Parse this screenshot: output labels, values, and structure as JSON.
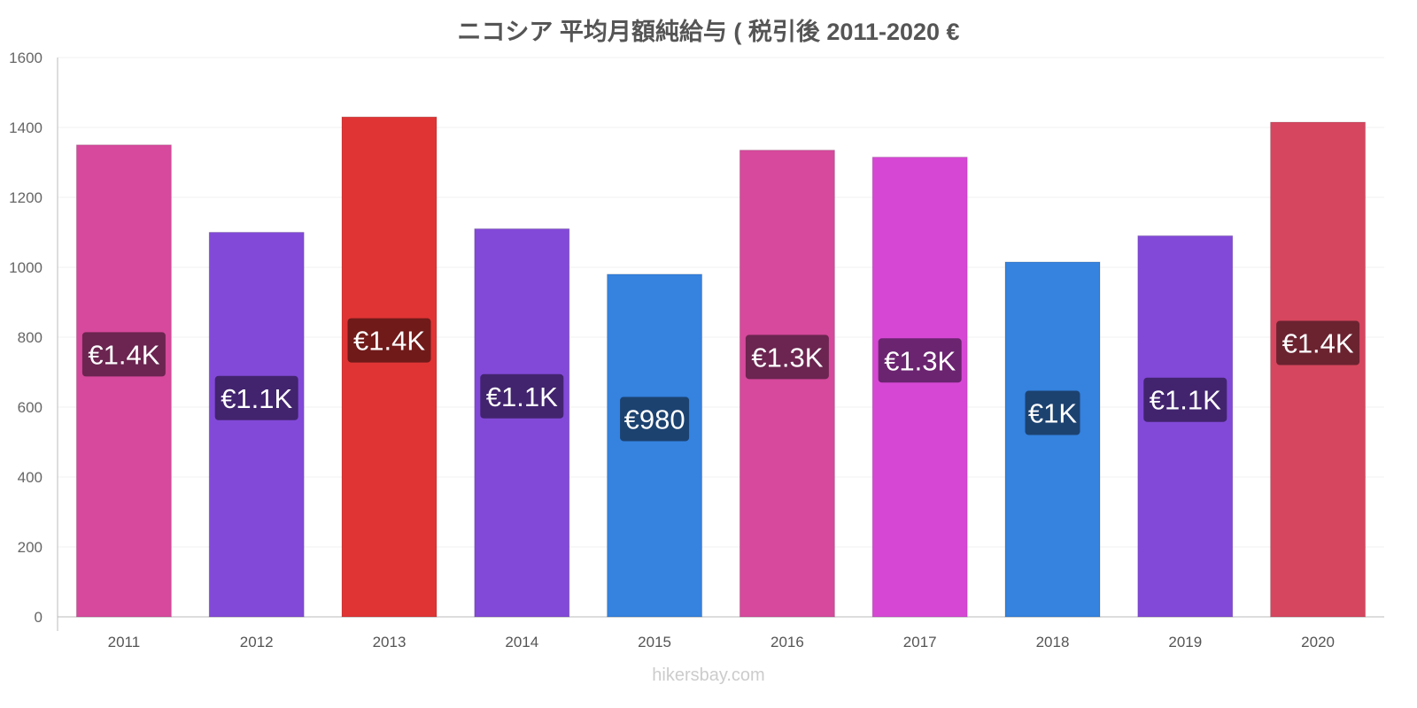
{
  "chart_data": {
    "type": "bar",
    "title": "ニコシア 平均月額純給与 ( 税引後 2011-2020 €",
    "categories": [
      "2011",
      "2012",
      "2013",
      "2014",
      "2015",
      "2016",
      "2017",
      "2018",
      "2019",
      "2020"
    ],
    "values": [
      1350,
      1100,
      1430,
      1110,
      980,
      1335,
      1315,
      1015,
      1090,
      1415
    ],
    "data_labels": [
      "€1.4K",
      "€1.1K",
      "€1.4K",
      "€1.1K",
      "€980",
      "€1.3K",
      "€1.3K",
      "€1K",
      "€1.1K",
      "€1.4K"
    ],
    "colors": [
      "#d6499c",
      "#8249d8",
      "#e03434",
      "#8249d8",
      "#3582df",
      "#d6499c",
      "#d648d4",
      "#3582df",
      "#8249d8",
      "#d6465e"
    ],
    "label_colors": [
      "#6b2550",
      "#42246e",
      "#701a1a",
      "#42246e",
      "#1c4270",
      "#6b2550",
      "#6b2470",
      "#1c4270",
      "#42246e",
      "#6b2330"
    ],
    "ylim": [
      0,
      1600
    ],
    "yticks": [
      0,
      200,
      400,
      600,
      800,
      1000,
      1200,
      1400,
      1600
    ],
    "xlabel": "",
    "ylabel": "",
    "grid": true
  },
  "watermark": "hikersbay.com"
}
